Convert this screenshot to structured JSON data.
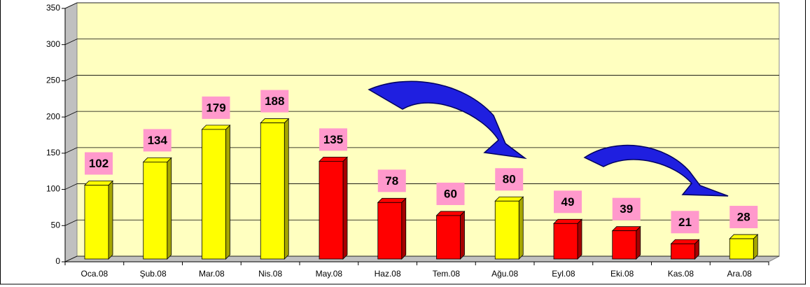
{
  "chart_data": {
    "type": "bar",
    "categories": [
      "Oca.08",
      "Şub.08",
      "Mar.08",
      "Nis.08",
      "May.08",
      "Haz.08",
      "Tem.08",
      "Ağu.08",
      "Eyl.08",
      "Eki.08",
      "Kas.08",
      "Ara.08"
    ],
    "values": [
      102,
      134,
      179,
      188,
      135,
      78,
      60,
      80,
      49,
      39,
      21,
      28
    ],
    "colors": [
      "#ffff00",
      "#ffff00",
      "#ffff00",
      "#ffff00",
      "#ff0000",
      "#ff0000",
      "#ff0000",
      "#ffff00",
      "#ff0000",
      "#ff0000",
      "#ff0000",
      "#ffff00"
    ],
    "ylim": [
      0,
      350
    ],
    "yticks": [
      0,
      50,
      100,
      150,
      200,
      250,
      300,
      350
    ],
    "grid": true
  }
}
